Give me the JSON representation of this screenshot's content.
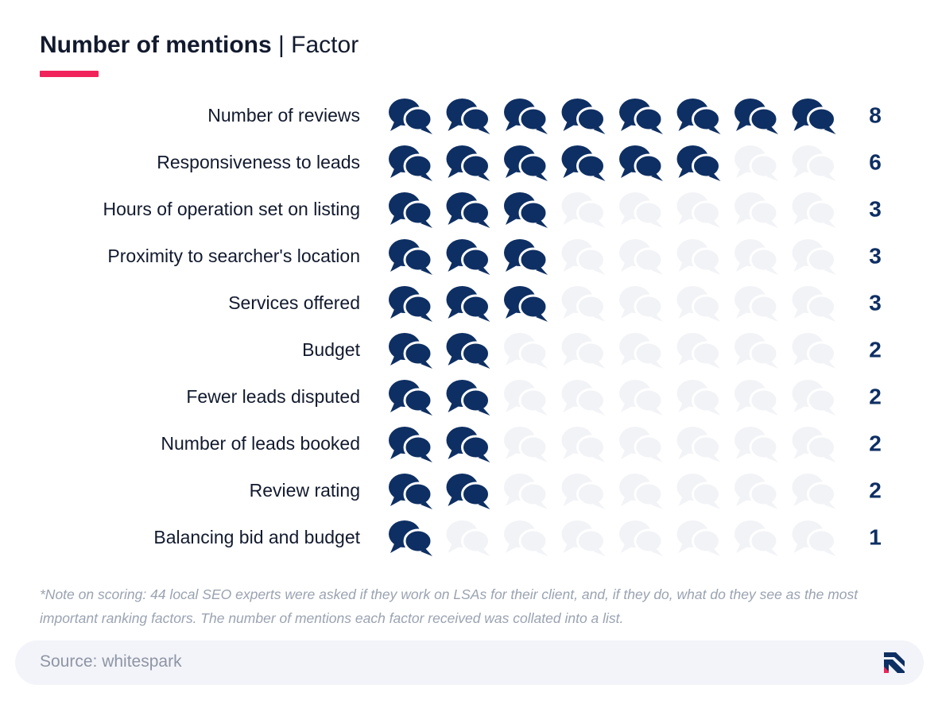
{
  "title": {
    "bold": "Number of mentions",
    "separator": "|",
    "rest": "Factor"
  },
  "colors": {
    "accent": "#f0245b",
    "filled_icon": "#0e2f63",
    "empty_icon": "#f2f3f7",
    "label_text": "#121a2e",
    "value_text": "#0e2f63",
    "logo_dark": "#0e2f63",
    "logo_accent": "#f0245b"
  },
  "icon": "speech-bubbles-icon",
  "chart_data": {
    "type": "pictograph",
    "max_icons": 8,
    "categories": [
      "Number of reviews",
      "Responsiveness to leads",
      "Hours of operation set on listing",
      "Proximity to searcher's location",
      "Services offered",
      "Budget",
      "Fewer leads disputed",
      "Number of leads booked",
      "Review rating",
      "Balancing bid and budget"
    ],
    "values": [
      8,
      6,
      3,
      3,
      3,
      2,
      2,
      2,
      2,
      1
    ]
  },
  "note": "*Note on scoring: 44 local SEO experts were asked if they work on LSAs for their client, and, if they do, what do they see as the most important ranking factors. The number of mentions each factor received was collated into a list.",
  "source": "Source: whitespark"
}
